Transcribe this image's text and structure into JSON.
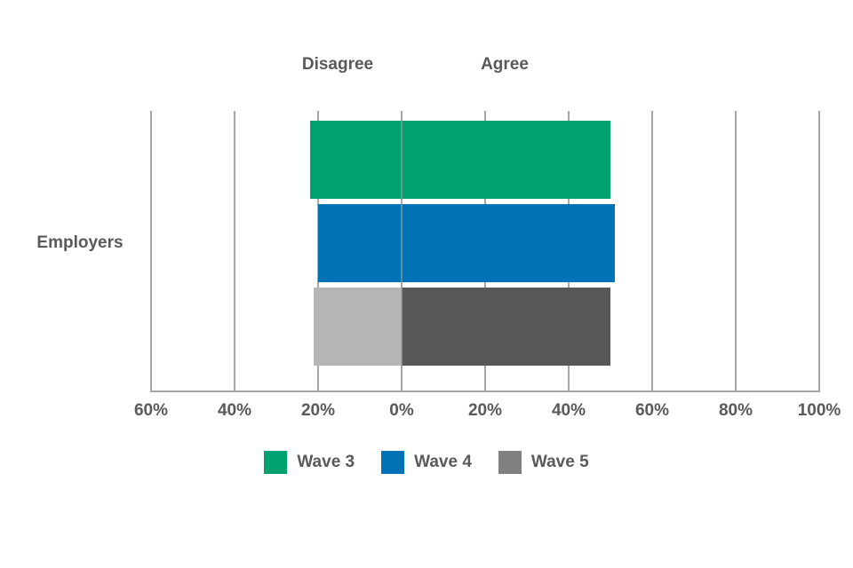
{
  "chart_data": {
    "type": "bar",
    "variant": "diverging-horizontal",
    "title": "",
    "category": "Employers",
    "headers": {
      "left": "Disagree",
      "right": "Agree"
    },
    "axis": {
      "min": -60,
      "max": 100,
      "tick_step": 20,
      "ticks": [
        -60,
        -40,
        -20,
        0,
        20,
        40,
        60,
        80,
        100
      ],
      "tick_labels": [
        "60%",
        "40%",
        "20%",
        "0%",
        "20%",
        "40%",
        "60%",
        "80%",
        "100%"
      ]
    },
    "series": [
      {
        "name": "Wave 3",
        "disagree_pct": 22,
        "agree_pct": 50,
        "disagree_color": "#00A170",
        "agree_color": "#00A170",
        "legend_color": "#00A170"
      },
      {
        "name": "Wave 4",
        "disagree_pct": 20,
        "agree_pct": 51,
        "disagree_color": "#0072B5",
        "agree_color": "#0072B5",
        "legend_color": "#0072B5"
      },
      {
        "name": "Wave 5",
        "disagree_pct": 21,
        "agree_pct": 50,
        "disagree_color": "#B5B5B5",
        "agree_color": "#575757",
        "legend_color": "#808080"
      }
    ],
    "legend_position": "bottom",
    "grid": true
  },
  "colors": {
    "background": "#FFFFFF",
    "gridline": "#A6A6A6",
    "text": "#595959"
  }
}
